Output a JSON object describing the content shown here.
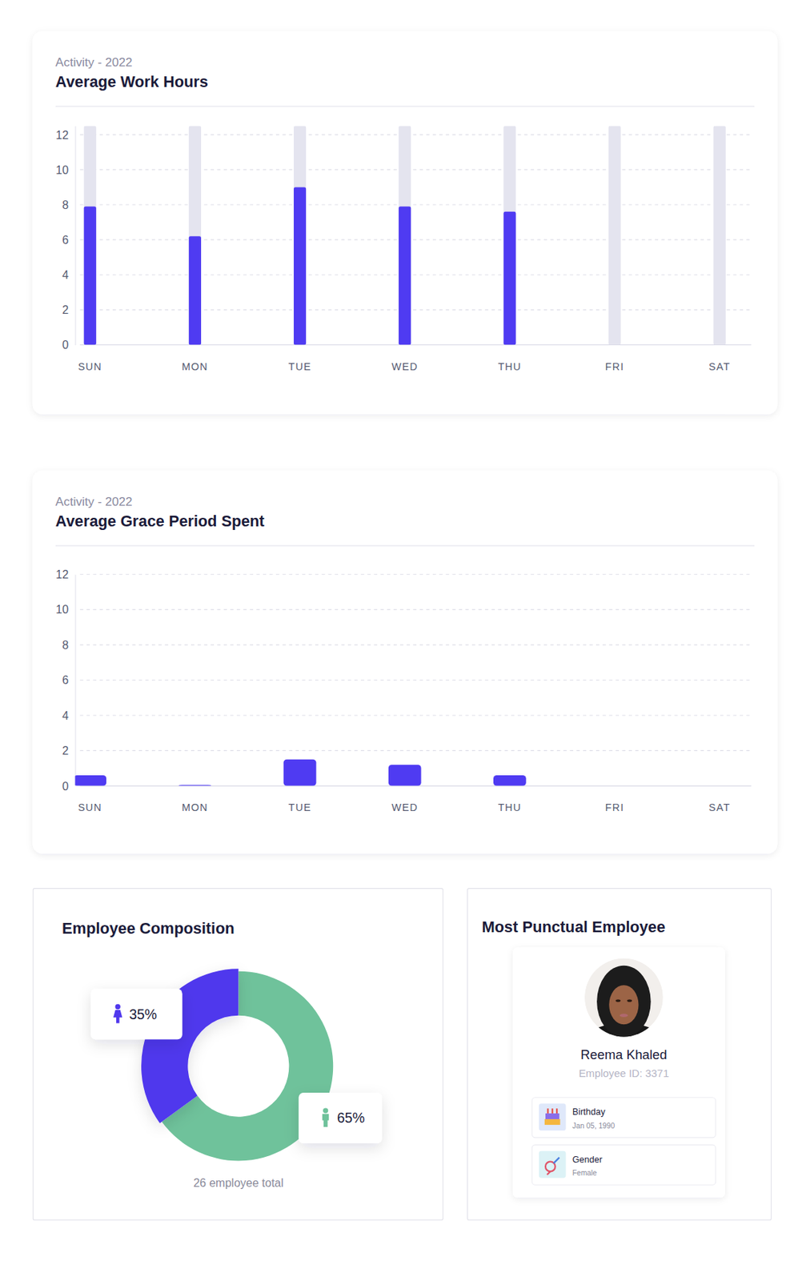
{
  "chart_data": [
    {
      "type": "bar",
      "subtitle": "Activity - 2022",
      "title": "Average Work Hours",
      "categories": [
        "SUN",
        "MON",
        "TUE",
        "WED",
        "THU",
        "FRI",
        "SAT"
      ],
      "values": [
        7.9,
        6.2,
        9.0,
        7.9,
        7.6,
        0,
        0
      ],
      "color": "#4f3bf2",
      "ylim": [
        0,
        12.5
      ],
      "yticks": [
        0,
        2,
        4,
        6,
        8,
        10,
        12
      ],
      "grid": true
    },
    {
      "type": "bar",
      "subtitle": "Activity - 2022",
      "title": "Average Grace Period Spent",
      "categories": [
        "SUN",
        "MON",
        "TUE",
        "WED",
        "THU",
        "FRI",
        "SAT"
      ],
      "values": [
        0.6,
        0.05,
        1.5,
        1.2,
        0.6,
        0,
        0
      ],
      "color": "#4f3bf2",
      "ylim": [
        0,
        12
      ],
      "yticks": [
        0,
        2,
        4,
        6,
        8,
        10,
        12
      ],
      "grid": true
    },
    {
      "type": "donut",
      "title": "Employee Composition",
      "values": [
        35,
        65
      ],
      "value_labels": [
        "35%",
        "65%"
      ],
      "colors": [
        "#5038ed",
        "#6fc29b"
      ],
      "data_labels": true,
      "annotations": [
        "26 employee total"
      ]
    }
  ],
  "profile_card": {
    "title": "Most Punctual Employee",
    "name": "Reema Khaled",
    "employee_id": "Employee ID: 3371",
    "fields": [
      {
        "label": "Birthday",
        "value": "Jan 05, 1990"
      },
      {
        "label": "Gender",
        "value": "Female"
      }
    ]
  }
}
